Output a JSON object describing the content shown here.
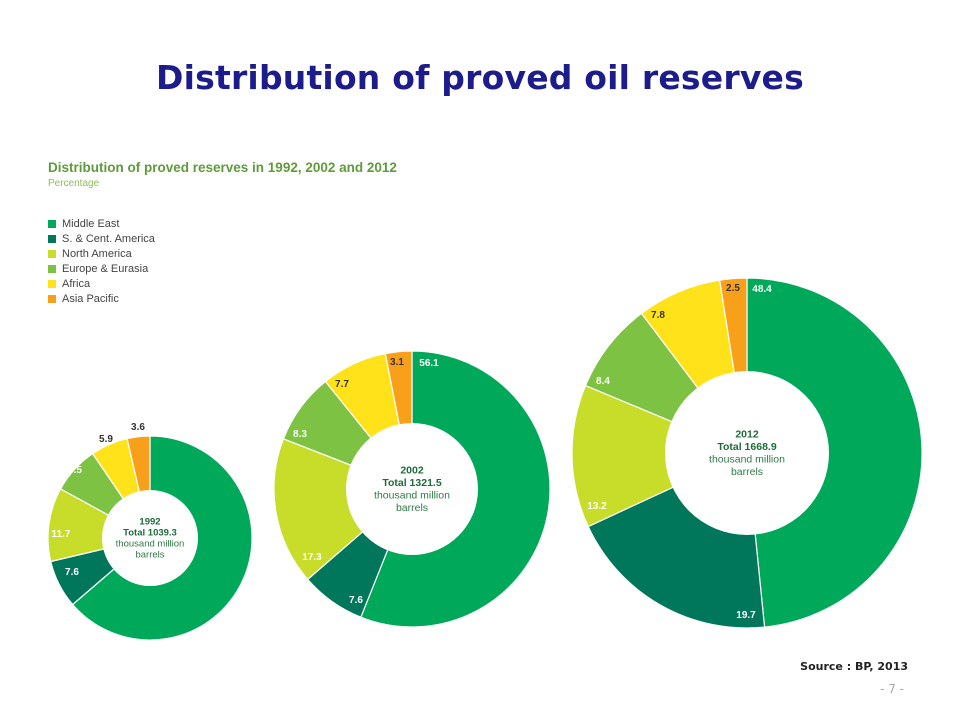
{
  "slide": {
    "title": "Distribution of proved oil reserves",
    "source": "Source : BP, 2013",
    "page_number": "- 7 -"
  },
  "chart_data": {
    "type": "pie",
    "title": "Distribution of proved reserves in 1992, 2002 and 2012",
    "subtitle": "Percentage",
    "categories": [
      "Middle East",
      "S. & Cent. America",
      "North America",
      "Europe & Eurasia",
      "Africa",
      "Asia Pacific"
    ],
    "colors": [
      "#00a859",
      "#00775a",
      "#c8dc2a",
      "#7dc242",
      "#ffe21a",
      "#f9a01b"
    ],
    "label_colors": [
      "#ffffff",
      "#ffffff",
      "#ffffff",
      "#ffffff",
      "#333333",
      "#333333"
    ],
    "legend_position": "top-left",
    "series": [
      {
        "year": "1992",
        "total": "Total 1039.3",
        "unit_line1": "thousand million",
        "unit_line2": "barrels",
        "values": [
          63.7,
          7.6,
          11.7,
          7.5,
          5.9,
          3.6
        ]
      },
      {
        "year": "2002",
        "total": "Total 1321.5",
        "unit_line1": "thousand million",
        "unit_line2": "barrels",
        "values": [
          56.1,
          7.6,
          17.3,
          8.3,
          7.7,
          3.1
        ]
      },
      {
        "year": "2012",
        "total": "Total 1668.9",
        "unit_line1": "thousand million",
        "unit_line2": "barrels",
        "values": [
          48.4,
          19.7,
          13.2,
          8.4,
          7.8,
          2.5
        ]
      }
    ]
  }
}
